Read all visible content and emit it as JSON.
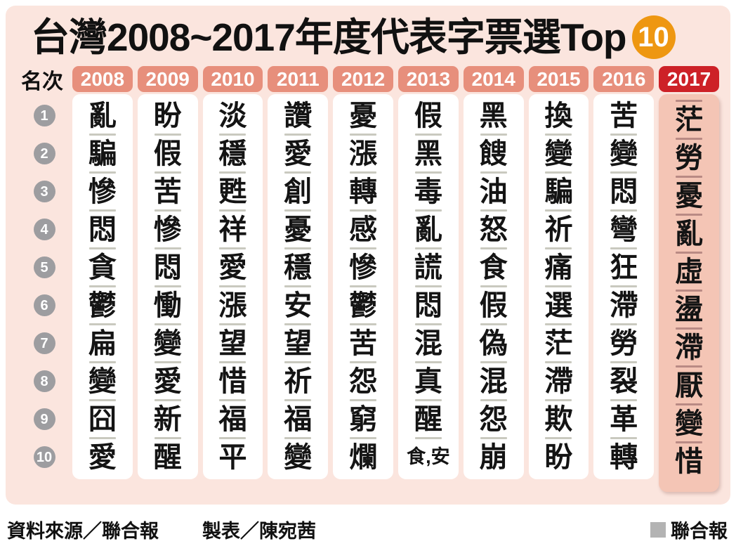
{
  "header": {
    "title": "台灣2008~2017年度代表字票選Top",
    "badge": "10"
  },
  "chart_data": {
    "type": "table",
    "title": "台灣2008~2017年度代表字票選Top 10",
    "rank_label": "名次",
    "ranks": [
      "1",
      "2",
      "3",
      "4",
      "5",
      "6",
      "7",
      "8",
      "9",
      "10"
    ],
    "series": [
      {
        "year": "2008",
        "chars": [
          "亂",
          "騙",
          "慘",
          "悶",
          "貪",
          "鬱",
          "扁",
          "變",
          "囧",
          "愛"
        ]
      },
      {
        "year": "2009",
        "chars": [
          "盼",
          "假",
          "苦",
          "慘",
          "悶",
          "慟",
          "變",
          "愛",
          "新",
          "醒"
        ]
      },
      {
        "year": "2010",
        "chars": [
          "淡",
          "穩",
          "甦",
          "祥",
          "愛",
          "漲",
          "望",
          "惜",
          "福",
          "平"
        ]
      },
      {
        "year": "2011",
        "chars": [
          "讚",
          "愛",
          "創",
          "憂",
          "穩",
          "安",
          "望",
          "祈",
          "福",
          "變"
        ]
      },
      {
        "year": "2012",
        "chars": [
          "憂",
          "漲",
          "轉",
          "感",
          "慘",
          "鬱",
          "苦",
          "怨",
          "窮",
          "爛"
        ]
      },
      {
        "year": "2013",
        "chars": [
          "假",
          "黑",
          "毒",
          "亂",
          "謊",
          "悶",
          "混",
          "真",
          "醒",
          "食,安"
        ]
      },
      {
        "year": "2014",
        "chars": [
          "黑",
          "餿",
          "油",
          "怒",
          "食",
          "假",
          "偽",
          "混",
          "怨",
          "崩"
        ]
      },
      {
        "year": "2015",
        "chars": [
          "換",
          "變",
          "騙",
          "祈",
          "痛",
          "選",
          "茫",
          "滯",
          "欺",
          "盼"
        ]
      },
      {
        "year": "2016",
        "chars": [
          "苦",
          "變",
          "悶",
          "彎",
          "狂",
          "滯",
          "勞",
          "裂",
          "革",
          "轉"
        ]
      },
      {
        "year": "2017",
        "chars": [
          "茫",
          "勞",
          "憂",
          "亂",
          "虛",
          "盪",
          "滯",
          "厭",
          "變",
          "惜"
        ],
        "highlight": true
      }
    ]
  },
  "footer": {
    "source": "資料來源／聯合報",
    "credit": "製表／陳宛茜",
    "brand": "聯合報"
  },
  "colors": {
    "panel": "#fbe5de",
    "chip": "#e78f7c",
    "chip2017": "#cd2127",
    "body2017": "#f4c5b5",
    "sep": "#c9c9bf",
    "sep2017": "#b98a84",
    "rank": "#9d9da0",
    "badge": "#ee9711",
    "brandsq": "#b3b3b3"
  }
}
